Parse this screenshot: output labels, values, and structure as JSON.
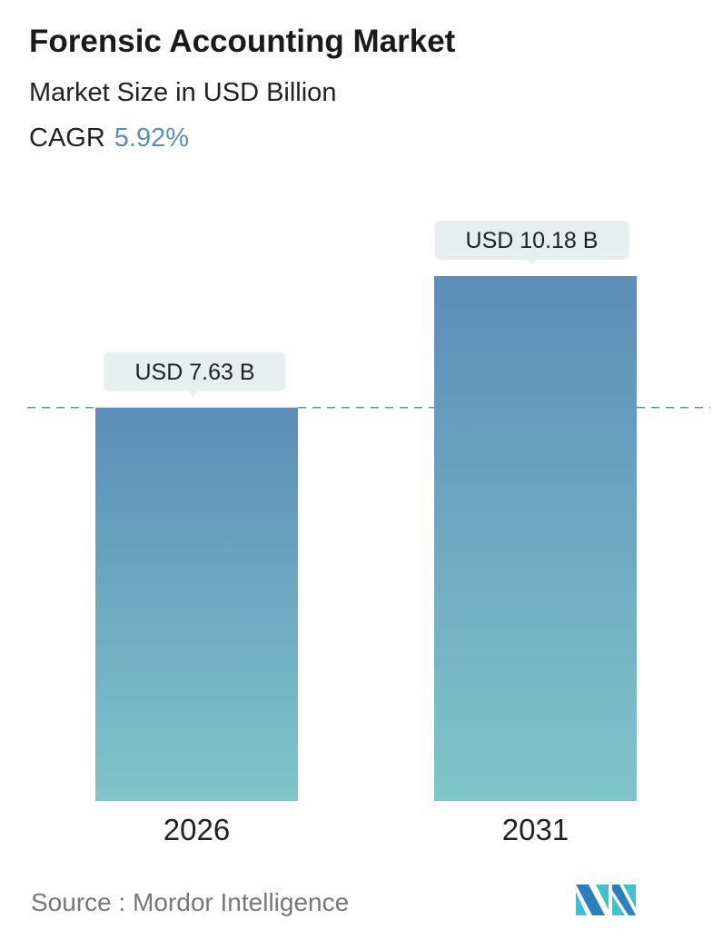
{
  "header": {
    "title": "Forensic Accounting Market",
    "subtitle": "Market Size in USD Billion",
    "cagr_label": "CAGR",
    "cagr_value": "5.92%"
  },
  "chart_data": {
    "type": "bar",
    "categories": [
      "2026",
      "2031"
    ],
    "values": [
      7.63,
      10.18
    ],
    "data_labels": [
      "USD 7.63 B",
      "USD 10.18 B"
    ],
    "ylim": [
      0,
      10.18
    ],
    "reference_line": {
      "value": 7.63,
      "style": "dashed"
    },
    "colors": {
      "bar_top": "#5b8db8",
      "bar_bottom": "#80c5c9",
      "dashed_line": "#5b8db8",
      "label_box": "#e6eeef"
    },
    "grid": false
  },
  "footer": {
    "source": "Source :  Mordor Intelligence",
    "logo_text": "MI"
  }
}
